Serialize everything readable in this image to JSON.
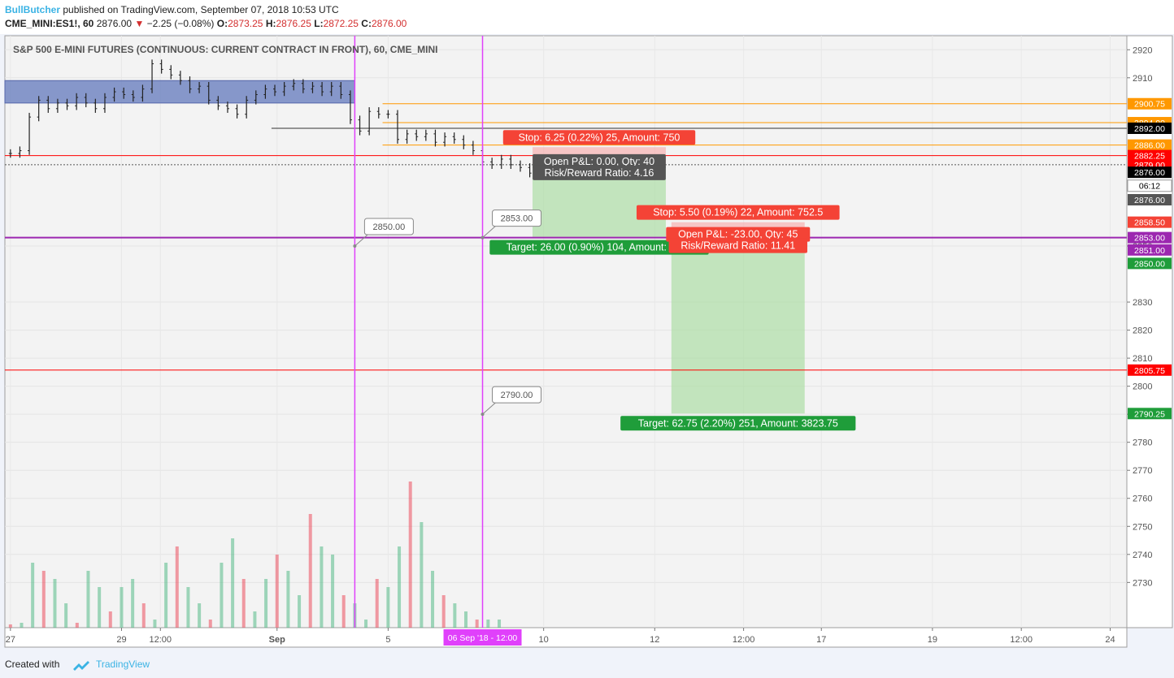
{
  "header": {
    "author": "BullButcher",
    "published": "published on TradingView.com, September 07, 2018 10:53 UTC",
    "symbol": "CME_MINI:ES1!, 60",
    "last": "2876.00",
    "change": "−2.25 (−0.08%)",
    "o_label": "O:",
    "o": "2873.25",
    "h_label": "H:",
    "h": "2876.25",
    "l_label": "L:",
    "l": "2872.25",
    "c_label": "C:",
    "c": "2876.00"
  },
  "footer": {
    "created": "Created with",
    "brand": "TradingView"
  },
  "colors": {
    "up": "#53b987",
    "down": "#eb4d5c",
    "stop": "#f44336",
    "target": "#1f9d3a",
    "orange": "#ff9800",
    "purple": "#9c27b0",
    "magenta": "#e040fb",
    "zone": "#6a7fbf"
  },
  "chart_data": {
    "type": "candlestick",
    "title": "S&P 500 E-MINI FUTURES (CONTINUOUS: CURRENT CONTRACT IN FRONT), 60, CME_MINI",
    "ylim": [
      2720,
      2925
    ],
    "y_ticks": [
      2730,
      2740,
      2750,
      2760,
      2770,
      2780,
      2790,
      2800,
      2810,
      2820,
      2830,
      2850,
      2910,
      2920
    ],
    "x_ticks": [
      {
        "label": "27",
        "t": 0
      },
      {
        "label": "29",
        "t": 10
      },
      {
        "label": "12:00",
        "t": 13.5
      },
      {
        "label": "Sep",
        "t": 24
      },
      {
        "label": "5",
        "t": 34
      },
      {
        "label": "10",
        "t": 48
      },
      {
        "label": "12",
        "t": 58
      },
      {
        "label": "12:00",
        "t": 66
      },
      {
        "label": "17",
        "t": 73
      },
      {
        "label": "19",
        "t": 83
      },
      {
        "label": "12:00",
        "t": 91
      },
      {
        "label": "24",
        "t": 99
      }
    ],
    "price_series_approx": [
      2883,
      2884,
      2896,
      2902,
      2899,
      2901,
      2900,
      2903,
      2901,
      2899,
      2903,
      2905,
      2904,
      2903,
      2906,
      2915,
      2913,
      2911,
      2909,
      2906,
      2907,
      2902,
      2900,
      2899,
      2897,
      2902,
      2904,
      2906,
      2905,
      2907,
      2908,
      2906,
      2907,
      2905,
      2907,
      2904,
      2895,
      2891,
      2898,
      2897,
      2897,
      2888,
      2890,
      2889,
      2890,
      2887,
      2889,
      2888,
      2886,
      2884,
      2880,
      2879,
      2881,
      2879,
      2878,
      2876
    ],
    "volume_approx": [
      0.2,
      0.3,
      4.0,
      3.5,
      3.0,
      1.5,
      0.3,
      3.5,
      2.5,
      1.0,
      2.5,
      3.0,
      1.5,
      0.5,
      4.0,
      5.0,
      2.5,
      1.5,
      0.5,
      4.0,
      5.5,
      3.0,
      1.0,
      3.0,
      4.5,
      3.5,
      2.0,
      7.0,
      5.0,
      4.5,
      2.0,
      1.5,
      0.5,
      3.0,
      2.5,
      5.0,
      9.0,
      6.5,
      3.5,
      2.0,
      1.5,
      1.0,
      0.5,
      0.5,
      0.5
    ],
    "time_slots": 100,
    "plot_time_range": [
      -0.5,
      100.5
    ],
    "horizontal_lines": [
      {
        "price": 2900.75,
        "color": "orange",
        "label": "2900.75"
      },
      {
        "price": 2894.0,
        "color": "orange",
        "label": "2894.00"
      },
      {
        "price": 2892.0,
        "color": "black",
        "label": "2892.00"
      },
      {
        "price": 2886.0,
        "color": "orange",
        "label": "2886.00"
      },
      {
        "price": 2882.25,
        "color": "red",
        "label": "2882.25"
      },
      {
        "price": 2879.0,
        "color": "red",
        "label": "2879.00"
      },
      {
        "price": 2853.0,
        "color": "purple",
        "label": "2853.00"
      },
      {
        "price": 2805.75,
        "color": "red",
        "label": "2805.75"
      }
    ],
    "zone": {
      "from": 2901,
      "to": 2909
    },
    "vlines": [
      {
        "t": 31
      },
      {
        "t": 42.5,
        "date_label": "06 Sep '18 - 12:00"
      }
    ],
    "price_labels": [
      {
        "text": "2850.00",
        "t": 31,
        "price": 2850
      },
      {
        "text": "2853.00",
        "t": 42.5,
        "price": 2853
      },
      {
        "text": "2790.00",
        "t": 42.5,
        "price": 2790
      }
    ],
    "axis_tags": [
      {
        "text": "2892.00",
        "price": 2892,
        "bg": "#000000"
      },
      {
        "text": "2876.00",
        "price": 2876.3,
        "bg": "#000000"
      },
      {
        "text": "06:12",
        "price": 2871.5,
        "bg": "#ffffff"
      },
      {
        "text": "2876.00",
        "price": 2866.5,
        "bg": "#555555"
      },
      {
        "text": "2858.50",
        "price": 2858.5,
        "bg": "#f44336"
      },
      {
        "text": "2851.00",
        "price": 2848.6,
        "bg": "#9c27b0"
      },
      {
        "text": "2850.00",
        "price": 2843.8,
        "bg": "#1f9d3a"
      },
      {
        "text": "2790.25",
        "price": 2790.25,
        "bg": "#1f9d3a"
      }
    ],
    "positions": [
      {
        "t0": 47,
        "t1": 59,
        "entry": 2879,
        "stop": 2885.25,
        "target": 2853,
        "stop_text": "Stop: 6.25 (0.22%) 25, Amount: 750",
        "pl_text": "Open P&L: 0.00, Qty: 40",
        "rr_text": "Risk/Reward Ratio: 4.16",
        "target_text": "Target: 26.00 (0.90%) 104, Amount: 1040"
      },
      {
        "t0": 59.5,
        "t1": 71.5,
        "entry": 2853,
        "stop": 2858.5,
        "target": 2790.25,
        "stop_text": "Stop: 5.50 (0.19%) 22, Amount: 752.5",
        "pl_text": "Open P&L: -23.00, Qty: 45",
        "rr_text": "Risk/Reward Ratio: 11.41",
        "target_text": "Target: 62.75 (2.20%) 251, Amount: 3823.75"
      }
    ]
  }
}
